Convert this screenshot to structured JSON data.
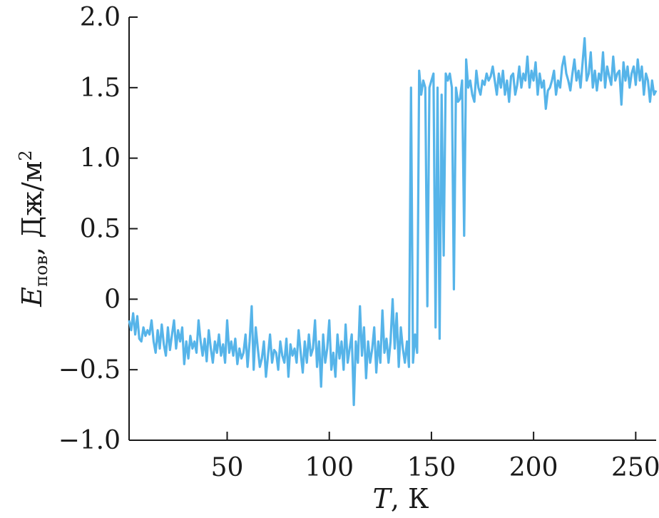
{
  "chart_data": {
    "type": "line",
    "xlabel_var": "T",
    "xlabel_unit": ", К",
    "ylabel_var": "E",
    "ylabel_sub": "пов",
    "ylabel_unit": ", Дж/м",
    "ylabel_sup": "2",
    "xlim": [
      2,
      260
    ],
    "ylim": [
      -1.0,
      2.0
    ],
    "xticks": [
      50,
      100,
      150,
      200,
      250
    ],
    "yticks": [
      -1.0,
      -0.5,
      0,
      0.5,
      1.0,
      1.5,
      2.0
    ],
    "xtick_labels": [
      "50",
      "100",
      "150",
      "200",
      "250"
    ],
    "ytick_labels": [
      "−1.0",
      "−0.5",
      "0",
      "0.5",
      "1.0",
      "1.5",
      "2.0"
    ],
    "grid": false,
    "series": [
      {
        "color": "#56b4e9",
        "x": [
          2,
          3,
          4,
          5,
          6,
          7,
          8,
          9,
          10,
          11,
          12,
          13,
          14,
          15,
          16,
          17,
          18,
          19,
          20,
          21,
          22,
          23,
          24,
          25,
          26,
          27,
          28,
          29,
          30,
          31,
          32,
          33,
          34,
          35,
          36,
          37,
          38,
          39,
          40,
          41,
          42,
          43,
          44,
          45,
          46,
          47,
          48,
          49,
          50,
          51,
          52,
          53,
          54,
          55,
          56,
          57,
          58,
          59,
          60,
          61,
          62,
          63,
          64,
          65,
          66,
          67,
          68,
          69,
          70,
          71,
          72,
          73,
          74,
          75,
          76,
          77,
          78,
          79,
          80,
          81,
          82,
          83,
          84,
          85,
          86,
          87,
          88,
          89,
          90,
          91,
          92,
          93,
          94,
          95,
          96,
          97,
          98,
          99,
          100,
          101,
          102,
          103,
          104,
          105,
          106,
          107,
          108,
          109,
          110,
          111,
          112,
          113,
          114,
          115,
          116,
          117,
          118,
          119,
          120,
          121,
          122,
          123,
          124,
          125,
          126,
          127,
          128,
          129,
          130,
          131,
          132,
          133,
          134,
          135,
          136,
          137,
          138,
          139,
          140,
          141,
          142,
          143,
          144,
          145,
          146,
          147,
          148,
          149,
          150,
          151,
          152,
          153,
          154,
          155,
          156,
          157,
          158,
          159,
          160,
          161,
          162,
          163,
          164,
          165,
          166,
          167,
          168,
          169,
          170,
          171,
          172,
          173,
          174,
          175,
          176,
          177,
          178,
          179,
          180,
          181,
          182,
          183,
          184,
          185,
          186,
          187,
          188,
          189,
          190,
          191,
          192,
          193,
          194,
          195,
          196,
          197,
          198,
          199,
          200,
          201,
          202,
          203,
          204,
          205,
          206,
          207,
          208,
          209,
          210,
          211,
          212,
          213,
          214,
          215,
          216,
          217,
          218,
          219,
          220,
          221,
          222,
          223,
          224,
          225,
          226,
          227,
          228,
          229,
          230,
          231,
          232,
          233,
          234,
          235,
          236,
          237,
          238,
          239,
          240,
          241,
          242,
          243,
          244,
          245,
          246,
          247,
          248,
          249,
          250,
          251,
          252,
          253,
          254,
          255,
          256,
          257,
          258,
          259,
          260
        ],
        "y": [
          -0.15,
          -0.22,
          -0.1,
          -0.25,
          -0.12,
          -0.28,
          -0.3,
          -0.2,
          -0.26,
          -0.22,
          -0.25,
          -0.15,
          -0.3,
          -0.38,
          -0.22,
          -0.35,
          -0.18,
          -0.32,
          -0.4,
          -0.2,
          -0.36,
          -0.25,
          -0.15,
          -0.35,
          -0.22,
          -0.3,
          -0.2,
          -0.46,
          -0.3,
          -0.42,
          -0.26,
          -0.35,
          -0.3,
          -0.38,
          -0.15,
          -0.3,
          -0.4,
          -0.28,
          -0.44,
          -0.22,
          -0.35,
          -0.45,
          -0.3,
          -0.38,
          -0.25,
          -0.4,
          -0.32,
          -0.45,
          -0.15,
          -0.38,
          -0.3,
          -0.4,
          -0.28,
          -0.46,
          -0.35,
          -0.42,
          -0.38,
          -0.25,
          -0.48,
          -0.3,
          -0.05,
          -0.5,
          -0.2,
          -0.35,
          -0.48,
          -0.42,
          -0.3,
          -0.55,
          -0.4,
          -0.25,
          -0.45,
          -0.36,
          -0.38,
          -0.5,
          -0.3,
          -0.4,
          -0.45,
          -0.28,
          -0.55,
          -0.32,
          -0.4,
          -0.35,
          -0.45,
          -0.22,
          -0.38,
          -0.52,
          -0.3,
          -0.45,
          -0.25,
          -0.4,
          -0.35,
          -0.15,
          -0.48,
          -0.3,
          -0.62,
          -0.25,
          -0.45,
          -0.35,
          -0.15,
          -0.5,
          -0.38,
          -0.55,
          -0.25,
          -0.42,
          -0.3,
          -0.5,
          -0.18,
          -0.45,
          -0.35,
          -0.25,
          -0.75,
          -0.3,
          -0.45,
          -0.05,
          -0.4,
          -0.2,
          -0.56,
          -0.3,
          -0.45,
          -0.35,
          -0.2,
          -0.52,
          -0.3,
          -0.45,
          -0.08,
          -0.38,
          -0.28,
          -0.45,
          -0.3,
          0.0,
          -0.35,
          -0.1,
          -0.48,
          -0.2,
          -0.35,
          -0.45,
          -0.3,
          -0.48,
          1.5,
          -0.45,
          -0.25,
          -0.38,
          1.62,
          1.45,
          1.55,
          1.5,
          -0.05,
          1.5,
          1.55,
          1.6,
          -0.2,
          1.5,
          -0.28,
          1.45,
          0.31,
          1.6,
          1.55,
          1.6,
          1.5,
          0.07,
          1.5,
          1.4,
          1.42,
          1.55,
          0.45,
          1.7,
          1.5,
          1.55,
          1.45,
          1.4,
          1.62,
          1.5,
          1.45,
          1.55,
          1.52,
          1.6,
          1.55,
          1.58,
          1.65,
          1.55,
          1.45,
          1.6,
          1.5,
          1.62,
          1.45,
          1.55,
          1.4,
          1.58,
          1.6,
          1.45,
          1.52,
          1.65,
          1.5,
          1.6,
          1.55,
          1.72,
          1.5,
          1.62,
          1.55,
          1.68,
          1.45,
          1.6,
          1.5,
          1.55,
          1.35,
          1.48,
          1.5,
          1.55,
          1.62,
          1.45,
          1.55,
          1.5,
          1.65,
          1.72,
          1.6,
          1.55,
          1.48,
          1.6,
          1.7,
          1.55,
          1.62,
          1.5,
          1.68,
          1.85,
          1.55,
          1.6,
          1.75,
          1.5,
          1.62,
          1.48,
          1.6,
          1.55,
          1.75,
          1.5,
          1.65,
          1.58,
          1.52,
          1.72,
          1.55,
          1.6,
          1.62,
          1.38,
          1.68,
          1.55,
          1.65,
          1.5,
          1.6,
          1.65,
          1.52,
          1.7,
          1.55,
          1.65,
          1.45,
          1.6,
          1.55,
          1.4,
          1.55,
          1.45,
          1.48
        ]
      }
    ]
  }
}
